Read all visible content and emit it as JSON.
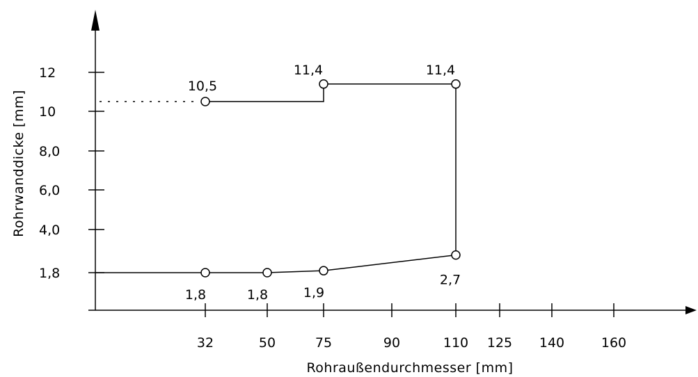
{
  "chart_data": {
    "type": "line",
    "xlabel": "Rohraußendurchmesser [mm]",
    "ylabel": "Rohrwanddicke [mm]",
    "x_ticks": [
      "32",
      "50",
      "75",
      "90",
      "110",
      "125",
      "140",
      "160"
    ],
    "y_ticks": [
      {
        "label": "12",
        "value": 12
      },
      {
        "label": "10",
        "value": 10
      },
      {
        "label": "8,0",
        "value": 8
      },
      {
        "label": "6,0",
        "value": 6
      },
      {
        "label": "4,0",
        "value": 4
      },
      {
        "label": "1,8",
        "value": 1.8
      }
    ],
    "grid": false,
    "series": [
      {
        "points": [
          {
            "x": "32",
            "y": 1.8,
            "label": "1,8"
          },
          {
            "x": "50",
            "y": 1.8,
            "label": "1,8"
          },
          {
            "x": "75",
            "y": 1.9,
            "label": "1,9"
          },
          {
            "x": "110",
            "y": 2.7,
            "label": "2,7"
          }
        ]
      },
      {
        "points": [
          {
            "x": "32",
            "y": 10.5,
            "label": "10,5"
          },
          {
            "x": "75",
            "y": 11.4,
            "label": "11,4"
          },
          {
            "x": "110",
            "y": 11.4,
            "label": "11,4"
          }
        ]
      }
    ]
  }
}
